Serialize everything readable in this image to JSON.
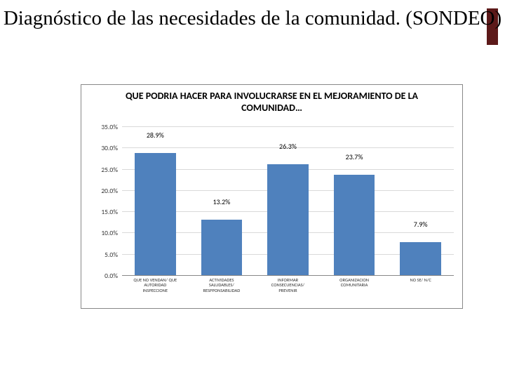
{
  "slide": {
    "title": "Diagnóstico de las necesidades de la comunidad. (SONDEO)",
    "title_fontsize": 29,
    "title_color": "#000000",
    "accent_color": "#5c1919",
    "background_color": "#ffffff"
  },
  "chart": {
    "type": "bar",
    "title": "QUE PODRIA HACER PARA INVOLUCRARSE EN EL MEJORAMIENTO DE LA COMUNIDAD…",
    "title_fontsize": 14,
    "title_weight": "bold",
    "background_color": "#ffffff",
    "border_color": "#888888",
    "grid_color": "#d9d9d9",
    "axis_color": "#888888",
    "bar_color": "#4f81bd",
    "bar_width_pct": 62,
    "label_fontsize": 10,
    "tick_fontsize": 9.5,
    "xlabel_fontsize": 6.5,
    "y": {
      "min": 0,
      "max": 35,
      "step": 5,
      "ticks": [
        {
          "v": 0,
          "label": "0.0%"
        },
        {
          "v": 5,
          "label": "5.0%"
        },
        {
          "v": 10,
          "label": "10.0%"
        },
        {
          "v": 15,
          "label": "15.0%"
        },
        {
          "v": 20,
          "label": "20.0%"
        },
        {
          "v": 25,
          "label": "25.0%"
        },
        {
          "v": 30,
          "label": "30.0%"
        },
        {
          "v": 35,
          "label": "35.0%"
        }
      ]
    },
    "series": [
      {
        "value": 28.9,
        "label": "28.9%",
        "category_lines": [
          "QUE NO VENDAN/ QUE",
          "AUTORIDAD",
          "INSPECCIONE"
        ]
      },
      {
        "value": 13.2,
        "label": "13.2%",
        "category_lines": [
          "ACTIVIDADES",
          "SALUDABLES/",
          "RESPPONSABILIDAD"
        ]
      },
      {
        "value": 26.3,
        "label": "26.3%",
        "category_lines": [
          "INFORMAR",
          "CONSECUENCIAS/",
          "PREVENIR"
        ]
      },
      {
        "value": 23.7,
        "label": "23.7%",
        "category_lines": [
          "ORGANIZACION",
          "COMUNITARIA"
        ]
      },
      {
        "value": 7.9,
        "label": "7.9%",
        "category_lines": [
          "NO SE/ N/C"
        ]
      }
    ]
  }
}
